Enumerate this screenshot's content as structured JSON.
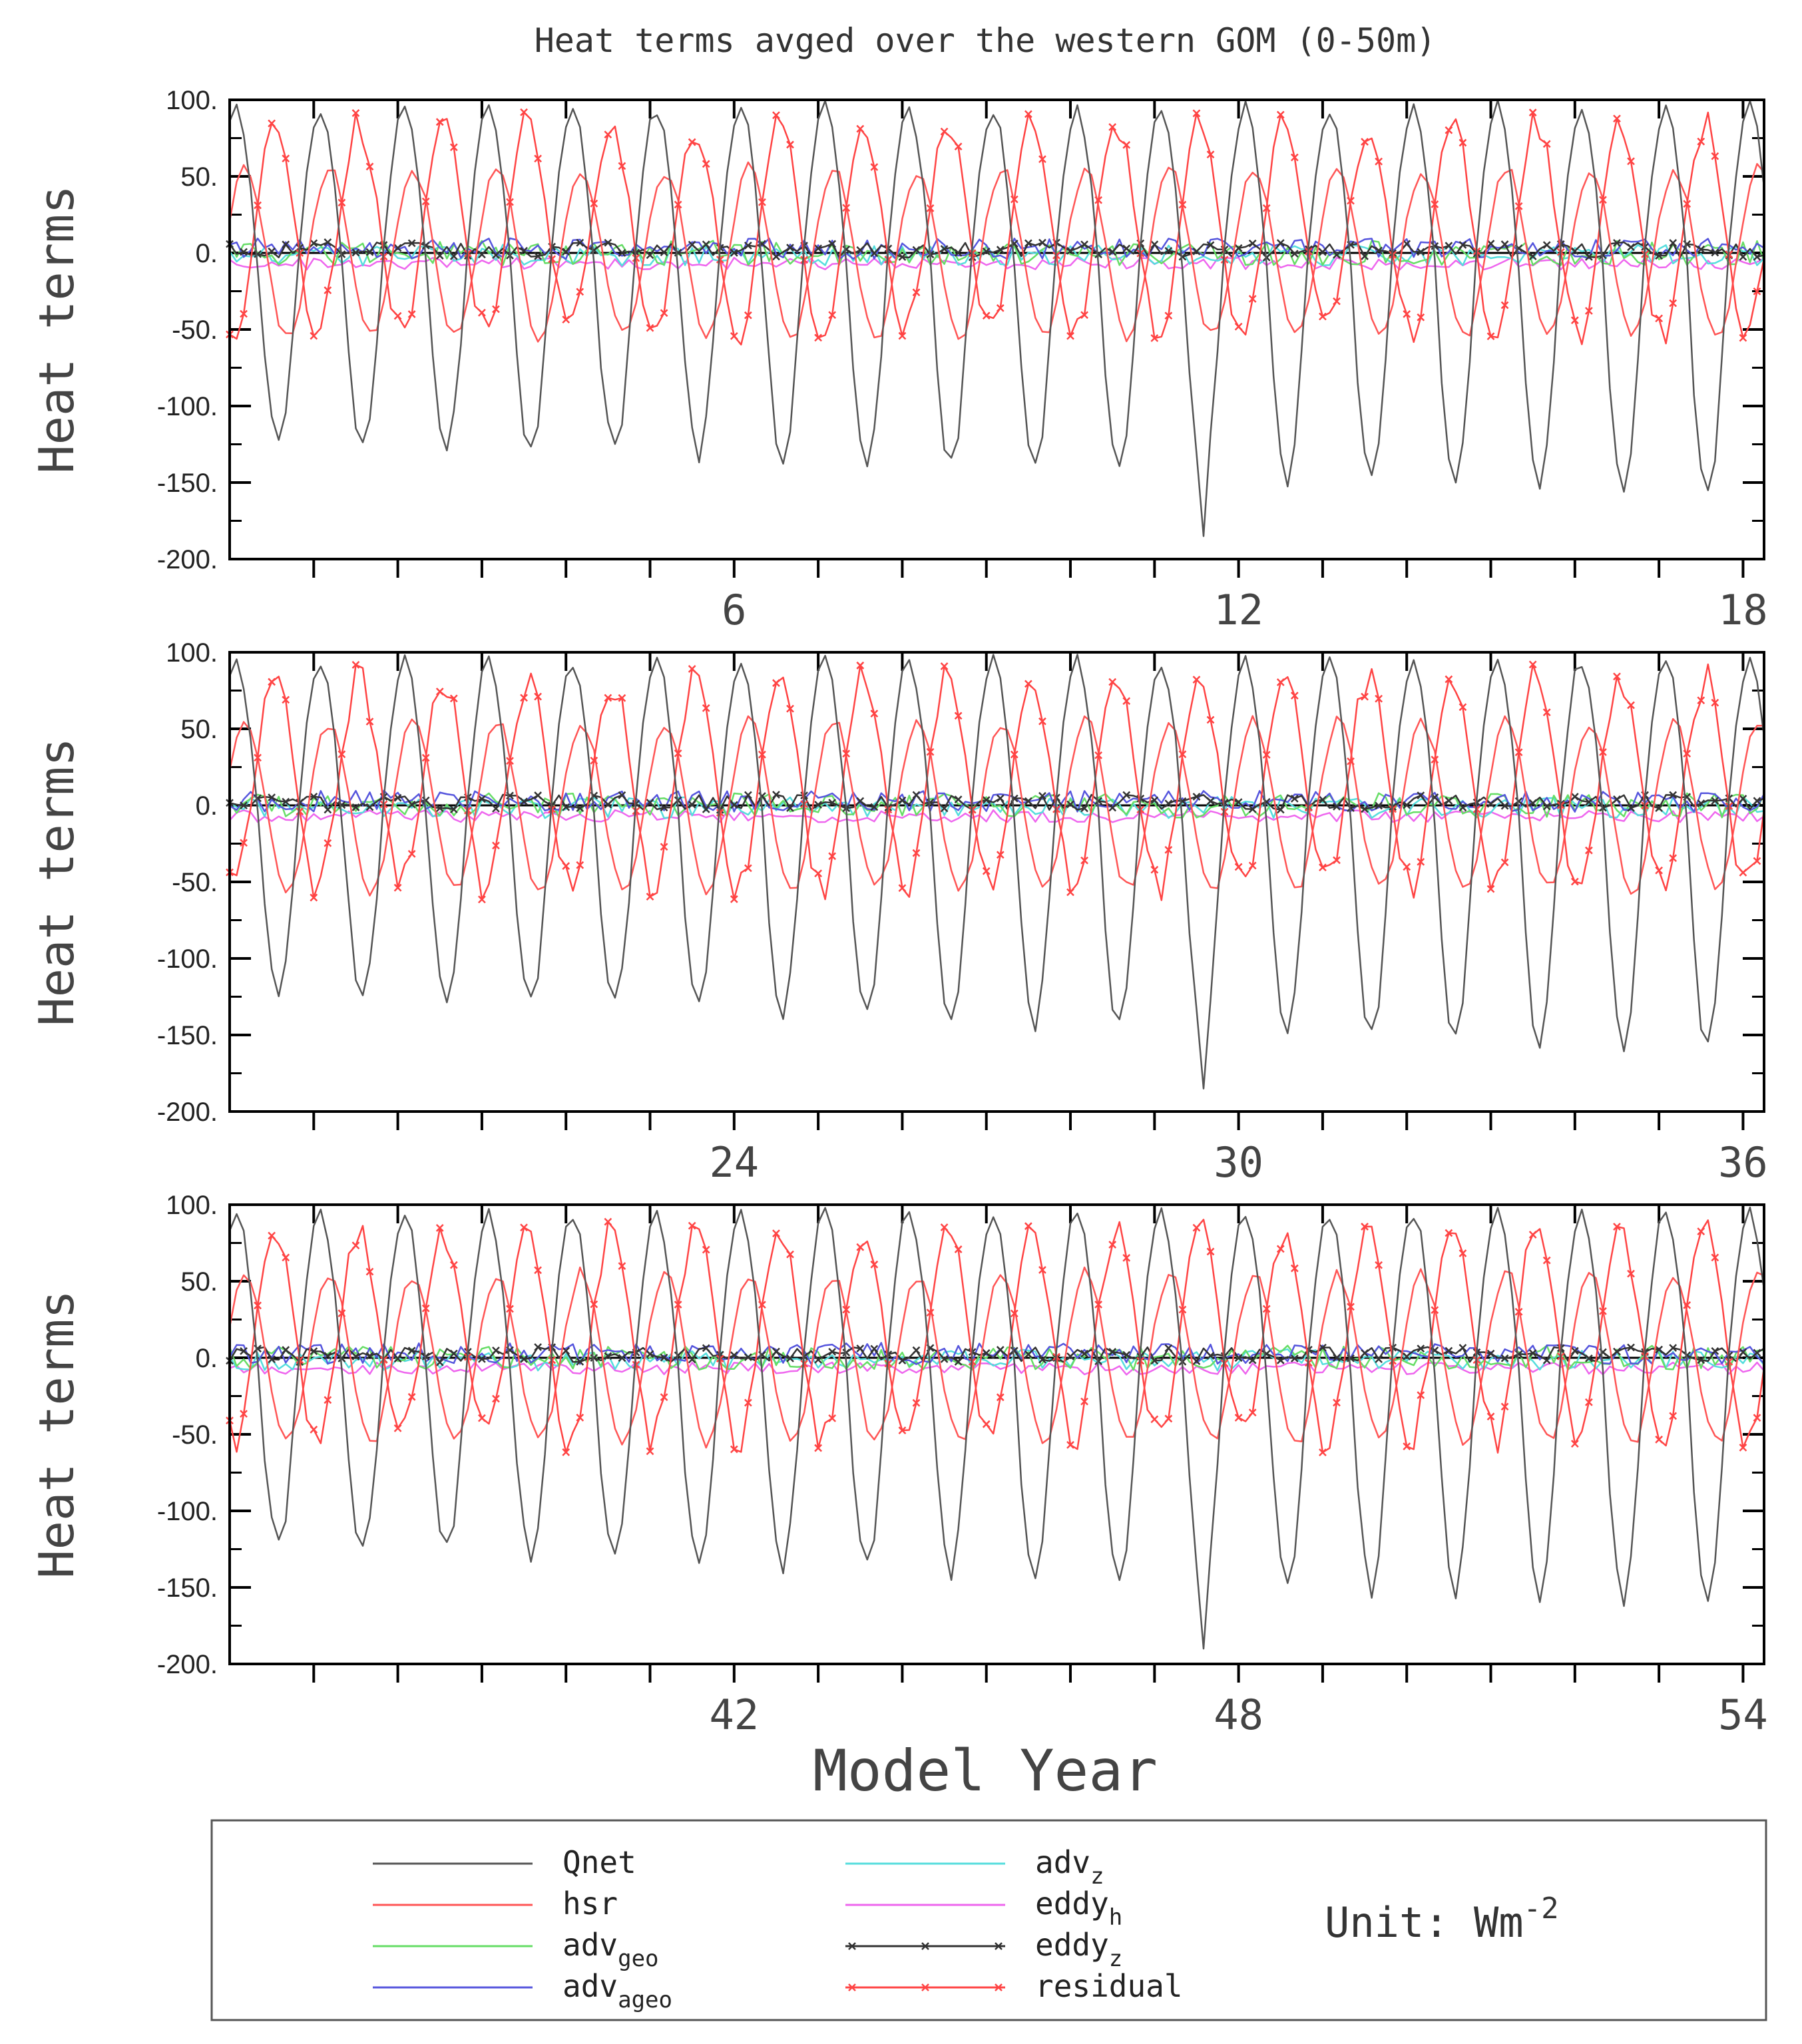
{
  "chart_data": {
    "type": "line",
    "title": "Heat terms avged over the western GOM (0-50m)",
    "xlabel": "Model Year",
    "ylabel": "Heat terms",
    "ylim": [
      -200,
      100
    ],
    "yticks": [
      100,
      50,
      0,
      -50,
      -100,
      -150,
      -200
    ],
    "ytick_labels": [
      "100.",
      "50.",
      "0.",
      "-50.",
      "-100.",
      "-150.",
      "-200."
    ],
    "unit_label": "Unit: Wm",
    "unit_exponent": "-2",
    "panels": [
      {
        "name": "panel-1",
        "xlim": [
          0,
          18.25
        ],
        "xticks": [
          "6",
          "12",
          "18"
        ],
        "xtick_values": [
          6,
          12,
          18
        ],
        "phase": 0
      },
      {
        "name": "panel-2",
        "xlim": [
          18,
          36.25
        ],
        "xticks": [
          "24",
          "30",
          "36"
        ],
        "xtick_values": [
          24,
          30,
          36
        ],
        "phase": 1
      },
      {
        "name": "panel-3",
        "xlim": [
          36,
          54.25
        ],
        "xticks": [
          "42",
          "48",
          "54"
        ],
        "xtick_values": [
          42,
          48,
          54
        ],
        "phase": 2
      }
    ],
    "legend": [
      {
        "key": "qnet",
        "base": "Qnet",
        "sub": "",
        "color": "#555555",
        "marker": false
      },
      {
        "key": "hsr",
        "base": "hsr",
        "sub": "",
        "color": "#ff5555",
        "marker": false
      },
      {
        "key": "adv_geo",
        "base": "adv",
        "sub": "geo",
        "color": "#66dd66",
        "marker": false
      },
      {
        "key": "adv_ageo",
        "base": "adv",
        "sub": "ageo",
        "color": "#5555dd",
        "marker": false
      },
      {
        "key": "adv_z",
        "base": "adv",
        "sub": "z",
        "color": "#55dddd",
        "marker": false
      },
      {
        "key": "eddy_h",
        "base": "eddy",
        "sub": "h",
        "color": "#ee66ee",
        "marker": false
      },
      {
        "key": "eddy_z",
        "base": "eddy",
        "sub": "z",
        "color": "#333333",
        "marker": true
      },
      {
        "key": "residual",
        "base": "residual",
        "sub": "",
        "color": "#ff4444",
        "marker": true
      }
    ],
    "series_description": {
      "qnet_summer_peak_approx": 90,
      "qnet_winter_trough_approx": -120,
      "qnet_min": -185,
      "hsr_peak_approx": 55,
      "hsr_trough_approx": -45,
      "residual_peak_approx": 75,
      "residual_trough_approx": -35,
      "small_terms_range": [
        -15,
        15
      ]
    }
  }
}
